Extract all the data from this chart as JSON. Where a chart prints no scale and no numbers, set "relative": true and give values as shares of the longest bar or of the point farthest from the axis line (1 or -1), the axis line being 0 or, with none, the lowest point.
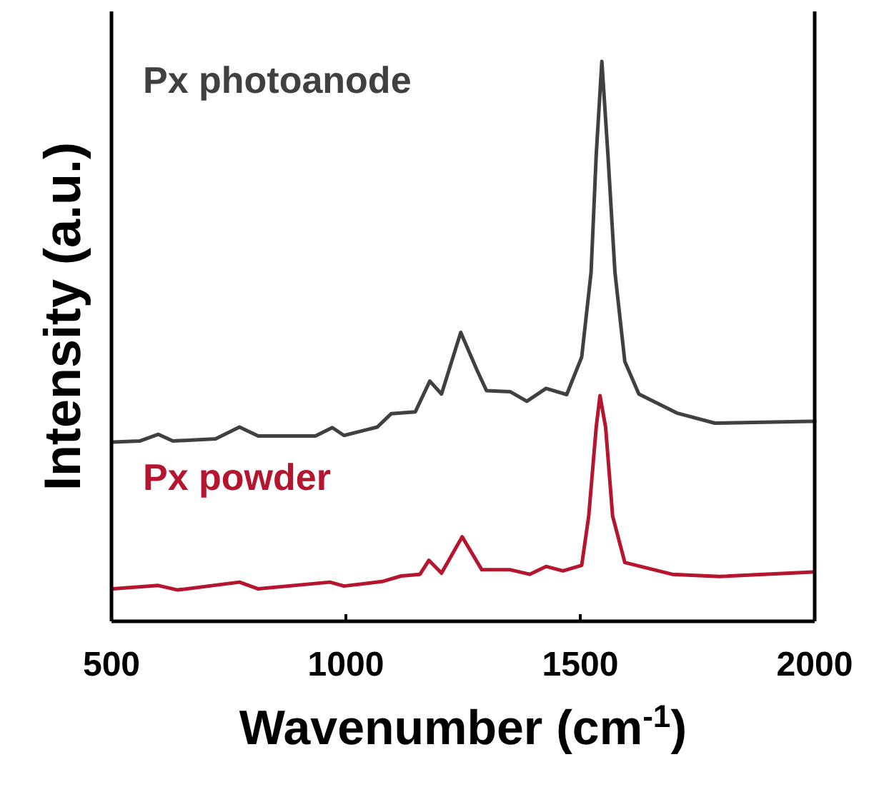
{
  "chart_data": {
    "type": "line",
    "relative": true,
    "xlabel": "Wavenumber (cm$^{-1}$)",
    "ylabel": "Intensity (a.u.)",
    "xlim": [
      500,
      2000
    ],
    "xticks": [
      500,
      1000,
      1500,
      2000
    ],
    "grid": false,
    "line_style": "solid",
    "tick_labels": "x",
    "series": [
      {
        "name": "Px photoanode",
        "color": "#404040",
        "x": [
          503,
          560,
          600,
          631,
          722,
          773,
          813,
          935,
          971,
          996,
          1067,
          1097,
          1148,
          1179,
          1204,
          1245,
          1280,
          1300,
          1351,
          1386,
          1427,
          1471,
          1503,
          1523,
          1534,
          1546,
          1559,
          1574,
          1595,
          1625,
          1706,
          1787,
          1990,
          2000
        ],
        "values": [
          0.32,
          0.322,
          0.334,
          0.322,
          0.326,
          0.347,
          0.331,
          0.331,
          0.346,
          0.332,
          0.347,
          0.371,
          0.374,
          0.429,
          0.406,
          0.516,
          0.448,
          0.412,
          0.41,
          0.393,
          0.416,
          0.405,
          0.472,
          0.623,
          0.833,
          1.0,
          0.833,
          0.623,
          0.464,
          0.406,
          0.372,
          0.354,
          0.357,
          0.357
        ]
      },
      {
        "name": "Px powder",
        "color": "#b5152f",
        "x": [
          503,
          600,
          641,
          773,
          813,
          966,
          996,
          1077,
          1118,
          1158,
          1177,
          1204,
          1248,
          1290,
          1351,
          1392,
          1427,
          1463,
          1503,
          1518,
          1534,
          1542,
          1554,
          1569,
          1595,
          1696,
          1797,
          1995
        ],
        "values": [
          0.058,
          0.064,
          0.056,
          0.07,
          0.058,
          0.07,
          0.063,
          0.071,
          0.081,
          0.084,
          0.109,
          0.086,
          0.151,
          0.092,
          0.092,
          0.084,
          0.098,
          0.09,
          0.1,
          0.188,
          0.347,
          0.403,
          0.347,
          0.188,
          0.105,
          0.084,
          0.08,
          0.088
        ]
      }
    ]
  }
}
